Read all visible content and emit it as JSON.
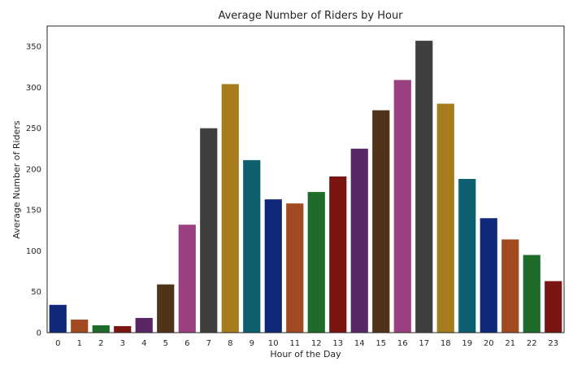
{
  "chart_data": {
    "type": "bar",
    "title": "Average Number of Riders by Hour",
    "xlabel": "Hour of the Day",
    "ylabel": "Average Number of Riders",
    "categories": [
      "0",
      "1",
      "2",
      "3",
      "4",
      "5",
      "6",
      "7",
      "8",
      "9",
      "10",
      "11",
      "12",
      "13",
      "14",
      "15",
      "16",
      "17",
      "18",
      "19",
      "20",
      "21",
      "22",
      "23"
    ],
    "values": [
      34,
      16,
      9,
      8,
      18,
      59,
      132,
      250,
      304,
      211,
      163,
      158,
      172,
      191,
      225,
      272,
      309,
      357,
      280,
      188,
      140,
      114,
      95,
      63
    ],
    "colors": [
      "#0f2878",
      "#a44a22",
      "#1f6b2a",
      "#7a1511",
      "#5a2766",
      "#51331a",
      "#9a3f80",
      "#3f3f3f",
      "#a67c1c",
      "#0d6070"
    ],
    "ylim": [
      0,
      375
    ],
    "yticks": [
      0,
      50,
      100,
      150,
      200,
      250,
      300,
      350
    ],
    "grid": false,
    "legend": "none"
  }
}
